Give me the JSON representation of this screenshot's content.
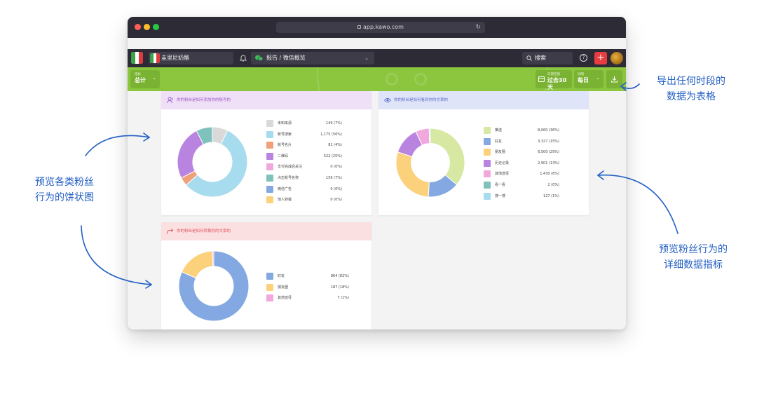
{
  "window": {
    "url": "app.kawo.com",
    "traffic_colors": [
      "#fe5f57",
      "#febc2e",
      "#28c840"
    ]
  },
  "header": {
    "brand_name": "圭里尼奶酪",
    "report_title": "报告 / 微信概览",
    "search_label": "搜索",
    "help_label": "?",
    "add_label": "+"
  },
  "toolbar": {
    "metric_small": "指标",
    "metric_value": "总计",
    "range_small": "日期范围",
    "range_value": "过去30天",
    "interval_small": "间隔",
    "interval_value": "每日"
  },
  "colors": {
    "accent_green": "#8cc63f",
    "header_dark": "#2c2b36",
    "annotation_blue": "#2460c4"
  },
  "cards": [
    {
      "title": "你的粉丝是如何添加你的账号的",
      "header_bg": "#efdff7",
      "title_color": "#9b59c8",
      "icon": "users-icon",
      "chart_data": {
        "type": "pie",
        "categories": [
          "未知来源",
          "账号搜索",
          "账号名片",
          "二维码",
          "支付完成后关注",
          "点击账号名称",
          "微信广告",
          "他人转载"
        ],
        "values": [
          149,
          1175,
          81,
          522,
          0,
          156,
          0,
          0
        ],
        "labels": [
          "149 (7%)",
          "1,175 (56%)",
          "81 (4%)",
          "522 (25%)",
          "0 (0%)",
          "156 (7%)",
          "0 (0%)",
          "0 (0%)"
        ],
        "colors": [
          "#d9d9d9",
          "#a7dcee",
          "#f0a17c",
          "#b983e0",
          "#f1a8dc",
          "#7fc1bb",
          "#84a9e2",
          "#fbd17c"
        ]
      }
    },
    {
      "title": "你的粉丝是如何看到你的文章的",
      "header_bg": "#e0e4f8",
      "title_color": "#5a6fc8",
      "icon": "eye-icon",
      "chart_data": {
        "type": "pie",
        "categories": [
          "推送",
          "好友",
          "朋友圈",
          "历史记录",
          "其他途径",
          "看一看",
          "搜一搜"
        ],
        "values": [
          8060,
          3327,
          6500,
          2901,
          1430,
          2,
          127
        ],
        "labels": [
          "8,060 (36%)",
          "3,327 (15%)",
          "6,500 (29%)",
          "2,901 (13%)",
          "1,430 (6%)",
          "2 (0%)",
          "127 (1%)"
        ],
        "colors": [
          "#d7e8a3",
          "#84a9e2",
          "#fbd17c",
          "#b983e0",
          "#f1a8dc",
          "#7fc1bb",
          "#a7dcee"
        ]
      }
    },
    {
      "title": "你的粉丝是如何转载你的文章的",
      "header_bg": "#fbe0e1",
      "title_color": "#e0595e",
      "icon": "share-arrow-icon",
      "chart_data": {
        "type": "pie",
        "categories": [
          "好友",
          "朋友圈",
          "其他途径"
        ],
        "values": [
          864,
          187,
          7
        ],
        "labels": [
          "864 (82%)",
          "187 (18%)",
          "7 (1%)"
        ],
        "colors": [
          "#84a9e2",
          "#fbd17c",
          "#f1a8dc"
        ]
      }
    }
  ],
  "annotations": {
    "top_right_line1": "导出任何时段的",
    "top_right_line2": "数据为表格",
    "left_line1": "预览各类粉丝",
    "left_line2": "行为的饼状图",
    "right_line1": "预览粉丝行为的",
    "right_line2": "详细数据指标"
  }
}
